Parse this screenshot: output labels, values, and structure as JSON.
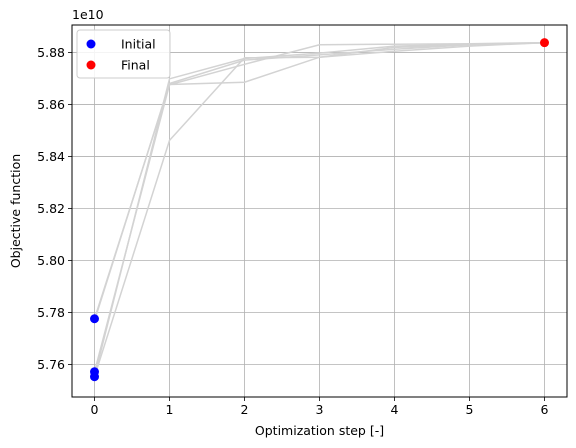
{
  "chart_data": {
    "type": "line",
    "title": "",
    "xlabel": "Optimization step [-]",
    "ylabel": "Objective function",
    "offset_label": "1e10",
    "xlim": [
      -0.3,
      6.3
    ],
    "ylim": [
      5.7475,
      5.8906
    ],
    "xticks": [
      0,
      1,
      2,
      3,
      4,
      5,
      6
    ],
    "yticks": [
      5.76,
      5.78,
      5.8,
      5.82,
      5.84,
      5.86,
      5.88
    ],
    "ytick_labels": [
      "5.76",
      "5.78",
      "5.80",
      "5.82",
      "5.84",
      "5.86",
      "5.88"
    ],
    "grid": true,
    "legend_position": "top-left",
    "colors": {
      "initial": "#0000ff",
      "final": "#ff0000",
      "trajectory": "#d3d3d3",
      "grid": "#b0b0b0"
    },
    "series": [
      {
        "x": [
          0,
          1,
          2,
          3,
          4,
          5,
          6
        ],
        "values": [
          5.7572,
          5.8677,
          5.8686,
          5.8782,
          5.8805,
          5.8825,
          5.8838
        ]
      },
      {
        "x": [
          0,
          1,
          2,
          3,
          4,
          5,
          6
        ],
        "values": [
          5.7554,
          5.8699,
          5.8777,
          5.8798,
          5.8825,
          5.8832,
          5.8838
        ]
      },
      {
        "x": [
          0,
          1,
          2,
          3,
          4,
          5,
          6
        ],
        "values": [
          5.7776,
          5.8676,
          5.8755,
          5.883,
          5.8832,
          5.8834,
          5.8838
        ]
      },
      {
        "x": [
          0,
          1,
          2,
          3,
          4,
          5,
          6
        ],
        "values": [
          5.7553,
          5.8462,
          5.878,
          5.8782,
          5.882,
          5.883,
          5.8838
        ]
      },
      {
        "x": [
          0,
          1,
          2,
          3,
          4,
          5,
          6
        ],
        "values": [
          5.7768,
          5.8681,
          5.8771,
          5.8791,
          5.8813,
          5.883,
          5.8838
        ]
      }
    ],
    "scatter": [
      {
        "name": "Initial",
        "points": [
          [
            0,
            5.7776
          ],
          [
            0,
            5.7572
          ],
          [
            0,
            5.7553
          ]
        ]
      },
      {
        "name": "Final",
        "points": [
          [
            6,
            5.8838
          ]
        ]
      }
    ]
  }
}
